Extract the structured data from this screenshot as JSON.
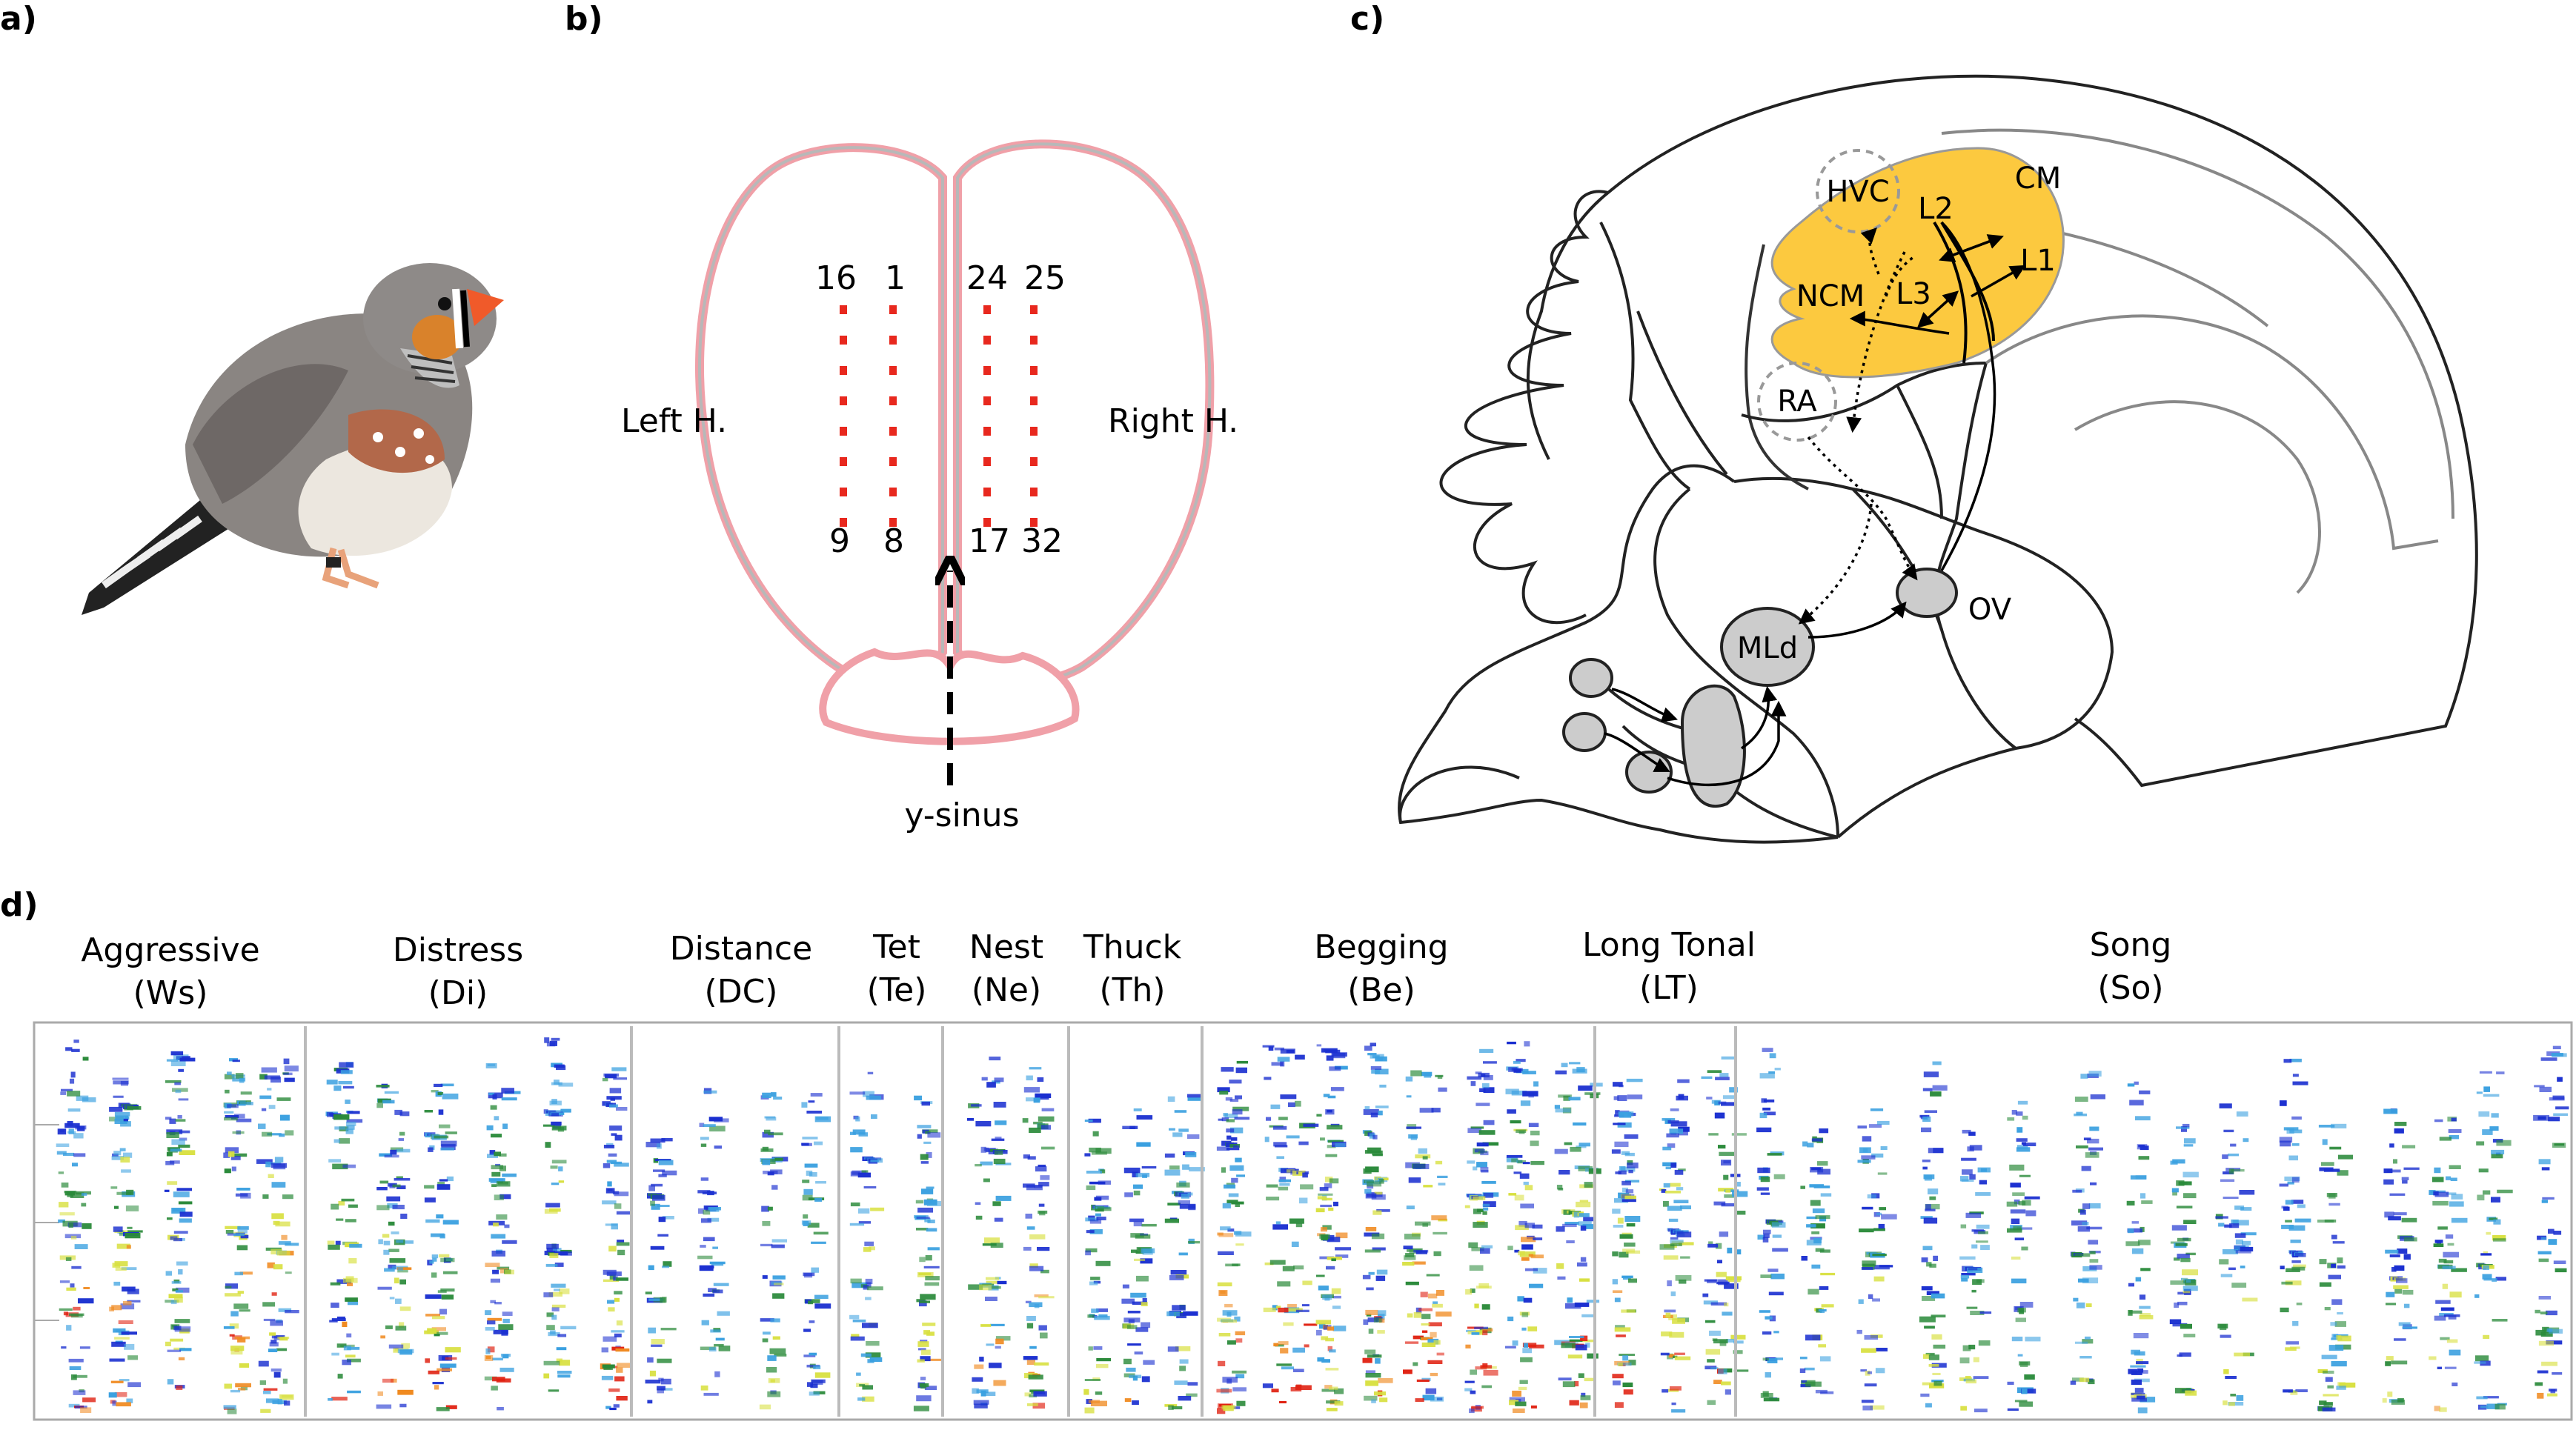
{
  "panels": {
    "a": {
      "letter": "a)"
    },
    "b": {
      "letter": "b)",
      "electrode_top": [
        "16",
        "1",
        "24",
        "25"
      ],
      "electrode_bottom": [
        "9",
        "8",
        "17",
        "32"
      ],
      "left_label": "Left H.",
      "right_label": "Right H.",
      "sinus_label": "y-sinus"
    },
    "c": {
      "letter": "c)",
      "regions": {
        "hvc": "HVC",
        "cm": "CM",
        "l2": "L2",
        "l1": "L1",
        "l3": "L3",
        "ncm": "NCM",
        "ra": "RA",
        "mld": "MLd",
        "ov": "OV"
      },
      "colors": {
        "auditory_forebrain": "#fcc93f",
        "nuclei": "#cccccc"
      }
    },
    "d": {
      "letter": "d)",
      "call_types": [
        {
          "name": "Aggressive",
          "abbr": "(Ws)"
        },
        {
          "name": "Distress",
          "abbr": "(Di)"
        },
        {
          "name": "Distance",
          "abbr": "(DC)"
        },
        {
          "name": "Tet",
          "abbr": "(Te)"
        },
        {
          "name": "Nest",
          "abbr": "(Ne)"
        },
        {
          "name": "Thuck",
          "abbr": "(Th)"
        },
        {
          "name": "Begging",
          "abbr": "(Be)"
        },
        {
          "name": "Long Tonal",
          "abbr": "(LT)"
        },
        {
          "name": "Song",
          "abbr": "(So)"
        }
      ],
      "spectrogram_colors": [
        "#1a2fd0",
        "#3aa0e0",
        "#2a8a3a",
        "#d8e040",
        "#f08a20",
        "#e02010"
      ]
    }
  }
}
